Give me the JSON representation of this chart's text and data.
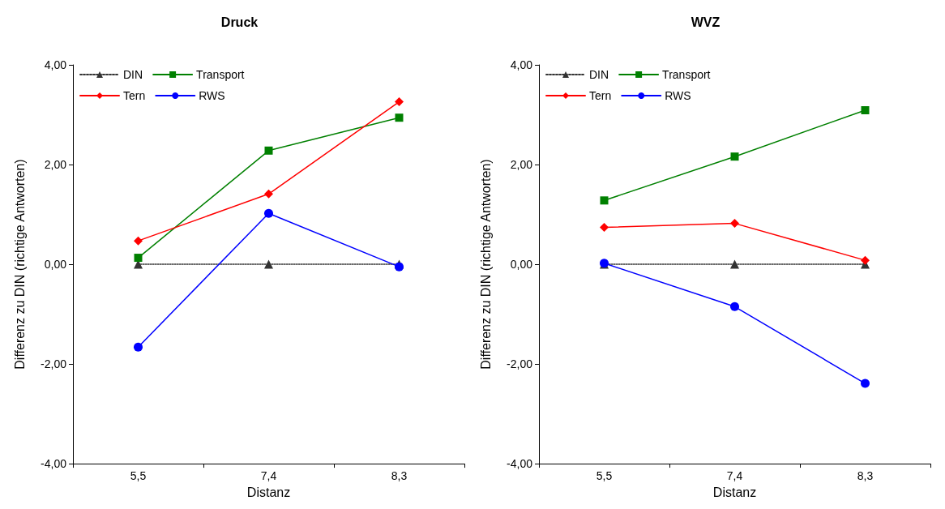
{
  "chart_data": [
    {
      "type": "line",
      "title": "Druck",
      "xlabel": "Distanz",
      "ylabel": "Differenz zu DIN (richtige Antworten)",
      "categories": [
        "5,5",
        "7,4",
        "8,3"
      ],
      "ylim": [
        -4,
        4
      ],
      "yticks": [
        {
          "value": -4,
          "label": "-4,00"
        },
        {
          "value": -2,
          "label": "-2,00"
        },
        {
          "value": 0,
          "label": "0,00"
        },
        {
          "value": 2,
          "label": "2,00"
        },
        {
          "value": 4,
          "label": "4,00"
        }
      ],
      "grid": false,
      "legend": "top left",
      "series": [
        {
          "name": "DIN",
          "color": "#333333",
          "marker": "triangle",
          "line_style": "dotted",
          "values": [
            0,
            0,
            0
          ]
        },
        {
          "name": "Transport",
          "color": "#008000",
          "marker": "square",
          "line_style": "solid",
          "values": [
            0.13,
            2.28,
            2.94
          ]
        },
        {
          "name": "Tern",
          "color": "#ff0000",
          "marker": "diamond",
          "line_style": "solid",
          "values": [
            0.47,
            1.41,
            3.26
          ]
        },
        {
          "name": "RWS",
          "color": "#0000ff",
          "marker": "circle",
          "line_style": "solid",
          "values": [
            -1.66,
            1.02,
            -0.05
          ]
        }
      ]
    },
    {
      "type": "line",
      "title": "WVZ",
      "xlabel": "Distanz",
      "ylabel": "Differenz zu DIN (richtige Antworten)",
      "categories": [
        "5,5",
        "7,4",
        "8,3"
      ],
      "ylim": [
        -4,
        4
      ],
      "yticks": [
        {
          "value": -4,
          "label": "-4,00"
        },
        {
          "value": -2,
          "label": "-2,00"
        },
        {
          "value": 0,
          "label": "0,00"
        },
        {
          "value": 2,
          "label": "2,00"
        },
        {
          "value": 4,
          "label": "4,00"
        }
      ],
      "grid": false,
      "legend": "top left",
      "series": [
        {
          "name": "DIN",
          "color": "#333333",
          "marker": "triangle",
          "line_style": "dotted",
          "values": [
            0,
            0,
            0
          ]
        },
        {
          "name": "Transport",
          "color": "#008000",
          "marker": "square",
          "line_style": "solid",
          "values": [
            1.28,
            2.16,
            3.09
          ]
        },
        {
          "name": "Tern",
          "color": "#ff0000",
          "marker": "diamond",
          "line_style": "solid",
          "values": [
            0.74,
            0.82,
            0.08
          ]
        },
        {
          "name": "RWS",
          "color": "#0000ff",
          "marker": "circle",
          "line_style": "solid",
          "values": [
            0.02,
            -0.85,
            -2.39
          ]
        }
      ]
    }
  ]
}
